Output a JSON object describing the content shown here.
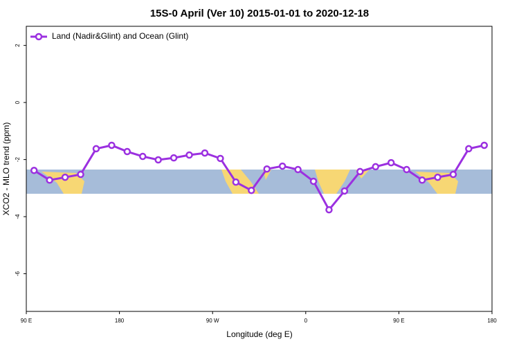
{
  "chart_data": {
    "type": "line",
    "title": "15S-0 April (Ver 10)   2015-01-01 to 2020-12-18",
    "xlabel": "Longitude (deg E)",
    "ylabel": "XCO2 - MLO trend (ppm)",
    "x": [
      97.5,
      112.5,
      127.5,
      142.5,
      157.5,
      172.5,
      187.5,
      202.5,
      217.5,
      232.5,
      247.5,
      262.5,
      277.5,
      292.5,
      307.5,
      322.5,
      337.5,
      352.5,
      367.5,
      382.5,
      397.5,
      412.5,
      427.5,
      442.5,
      457.5,
      472.5,
      487.5,
      502.5,
      517.5,
      532.5
    ],
    "series": [
      {
        "name": "Land (Nadir&Glint) and Ocean (Glint)",
        "color": "#9b30e0",
        "values": [
          -2.38,
          -2.72,
          -2.62,
          -2.52,
          -1.62,
          -1.5,
          -1.72,
          -1.89,
          -2.01,
          -1.94,
          -1.84,
          -1.77,
          -1.96,
          -2.79,
          -3.08,
          -2.33,
          -2.23,
          -2.35,
          -2.76,
          -3.76,
          -3.1,
          -2.42,
          -2.25,
          -2.11,
          -2.35,
          -2.72,
          -2.62,
          -2.52,
          -1.62,
          -1.5
        ]
      }
    ],
    "xlim": [
      90,
      540
    ],
    "ylim": [
      -7.32,
      2.67
    ],
    "xticks": [
      {
        "value": 90,
        "label": "90 E"
      },
      {
        "value": 180,
        "label": "180"
      },
      {
        "value": 270,
        "label": "90 W"
      },
      {
        "value": 360,
        "label": "0"
      },
      {
        "value": 450,
        "label": "90 E"
      },
      {
        "value": 540,
        "label": "180"
      }
    ],
    "yticks": [
      -6,
      -4,
      -2,
      0,
      2
    ],
    "legend": "top-left"
  }
}
